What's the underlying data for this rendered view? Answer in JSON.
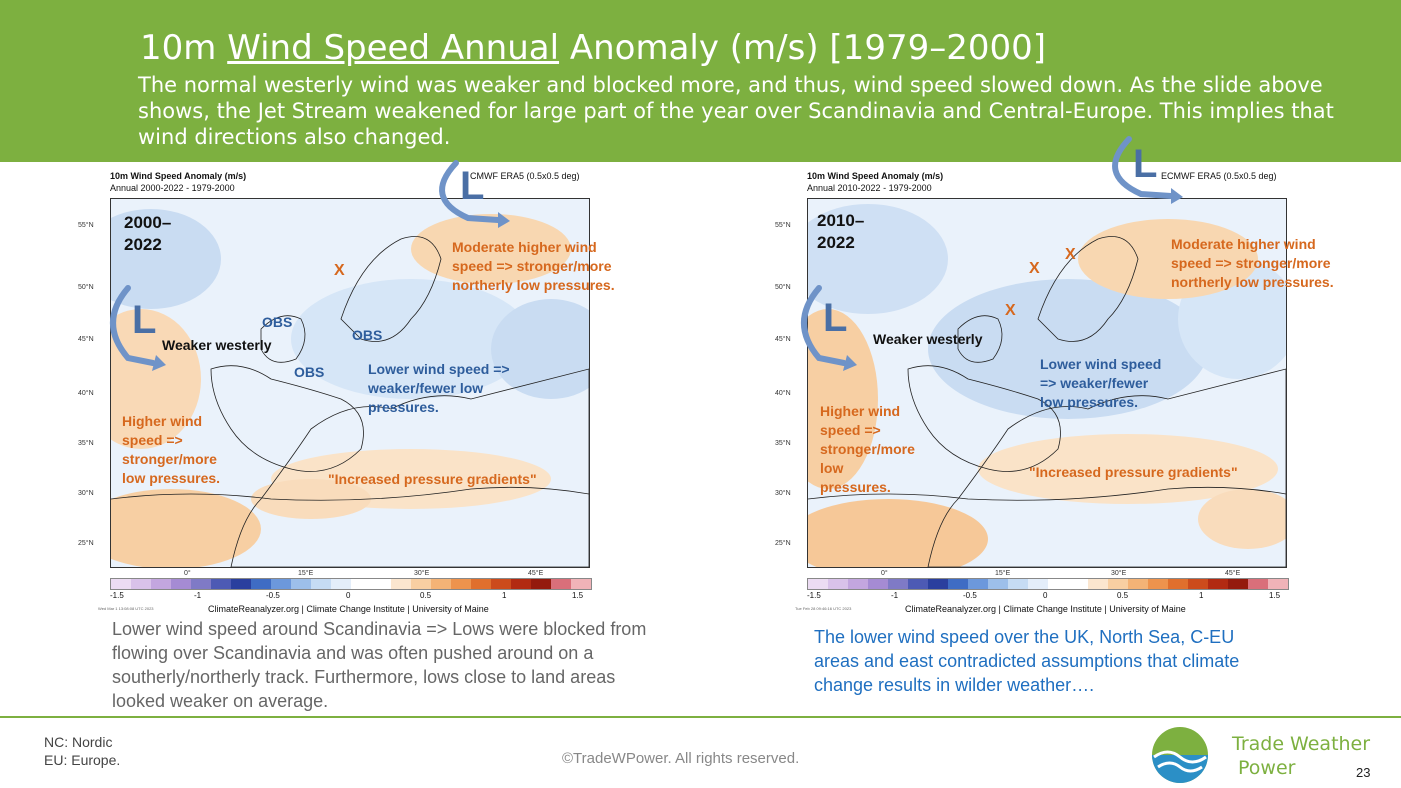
{
  "slide": {
    "title_pre": "10m ",
    "title_underlined": "Wind Speed Annual",
    "title_post": " Anomaly (m/s) [1979–2000]",
    "subtitle": "The normal westerly wind was weaker and blocked more, and thus, wind speed slowed down. As the slide above shows, the Jet Stream weakened for large part of the year over Scandinavia and Central-Europe. This implies that wind directions also changed.",
    "page_number": "23",
    "copyright": "©TradeWPower. All rights reserved.",
    "footnote_1": "NC: Nordic",
    "footnote_2": "EU: Europe.",
    "brand_line1": "Trade Weather",
    "brand_line2": "Power",
    "accent_color": "#7db040"
  },
  "left_map": {
    "title": "10m Wind Speed Anomaly (m/s)",
    "subtitle": "Annual 2000-2022 - 1979-2000",
    "source": "CMWF ERA5 (0.5x0.5 deg)",
    "period_line1": "2000–",
    "period_line2": "2022",
    "ann_moderate_1": "Moderate higher wind",
    "ann_moderate_2": "speed => stronger/more",
    "ann_moderate_3": "northerly low pressures.",
    "ann_weaker": "Weaker westerly",
    "ann_obs1": "OBS",
    "ann_obs2": "OBS",
    "ann_obs3": "OBS",
    "ann_lower_1": "Lower wind speed =>",
    "ann_lower_2": "weaker/fewer low",
    "ann_lower_3": "pressures.",
    "ann_higher_1": "Higher wind",
    "ann_higher_2": "speed =>",
    "ann_higher_3": "stronger/more",
    "ann_higher_4": "low pressures.",
    "ann_gradients": "\"Increased pressure gradients\"",
    "low_letter_1": "L",
    "low_letter_2": "L",
    "x_marks": [
      "X"
    ],
    "credit": "ClimateReanalyzer.org | Climate Change Institute | University of Maine",
    "tiny_date": "Wed Mar 1 13:08:08 UTC 2023",
    "body_text": "Lower wind speed around Scandinavia => Lows were blocked from flowing over Scandinavia and was often pushed around on a southerly/northerly track. Furthermore, lows close to land areas looked weaker on average."
  },
  "right_map": {
    "title": "10m Wind Speed Anomaly (m/s)",
    "subtitle": "Annual 2010-2022 - 1979-2000",
    "source": "ECMWF ERA5 (0.5x0.5 deg)",
    "period_line1": "2010–",
    "period_line2": "2022",
    "ann_moderate_1": "Moderate higher wind",
    "ann_moderate_2": "speed => stronger/more",
    "ann_moderate_3": "northerly low pressures.",
    "ann_weaker": "Weaker westerly",
    "ann_lower_1": "Lower wind speed",
    "ann_lower_2": "=> weaker/fewer",
    "ann_lower_3": "low pressures.",
    "ann_higher_1": "Higher wind",
    "ann_higher_2": "speed =>",
    "ann_higher_3": "stronger/more",
    "ann_higher_4": "low",
    "ann_higher_5": "pressures.",
    "ann_gradients": "\"Increased pressure gradients\"",
    "low_letter_1": "L",
    "low_letter_2": "L",
    "x_marks": [
      "X",
      "X",
      "X"
    ],
    "credit": "ClimateReanalyzer.org | Climate Change Institute | University of Maine",
    "tiny_date": "Tue Feb 28 09:46:16 UTC 2023",
    "body_text": "The lower wind speed over the UK, North Sea, C-EU areas and east contradicted assumptions that climate change results in wilder weather…."
  },
  "axes": {
    "lat_labels": [
      "55°N",
      "50°N",
      "45°N",
      "40°N",
      "35°N",
      "30°N",
      "25°N"
    ],
    "lon_labels": [
      "0°",
      "15°E",
      "30°E",
      "45°E"
    ],
    "colorbar_ticks": [
      "-1.5",
      "-1",
      "-0.5",
      "0",
      "0.5",
      "1",
      "1.5"
    ],
    "colorbar_colors": [
      "#ecdcf3",
      "#d9c2ea",
      "#c3a6df",
      "#a58bd3",
      "#7f7ac6",
      "#4d5ab4",
      "#2a3f9e",
      "#3f6cc4",
      "#6c98dc",
      "#9dbfea",
      "#c6dcf4",
      "#e4eefa",
      "#ffffff",
      "#ffffff",
      "#fbe6cf",
      "#f8cfa2",
      "#f4b376",
      "#ee934d",
      "#e06f2d",
      "#cc4b1c",
      "#b22a12",
      "#941a0d",
      "#d96f7a",
      "#f0b3b8"
    ]
  }
}
